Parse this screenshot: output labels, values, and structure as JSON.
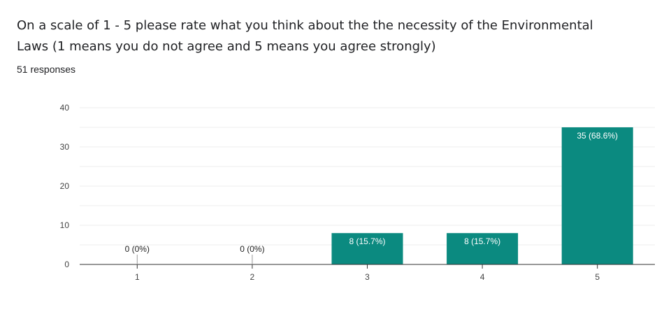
{
  "form": {
    "question": "On a scale of 1 - 5 please rate what you think about the the necessity of the Environmental Laws (1 means you do not agree and 5 means you agree strongly)",
    "responses": "51 responses"
  },
  "colors": {
    "bar": "#0b8a80",
    "grid": "#eeeeee",
    "axis": "#333333"
  },
  "chart_data": {
    "type": "bar",
    "categories": [
      "1",
      "2",
      "3",
      "4",
      "5"
    ],
    "values": [
      0,
      0,
      8,
      8,
      35
    ],
    "data_labels": [
      "0 (0%)",
      "0 (0%)",
      "8 (15.7%)",
      "8 (15.7%)",
      "35 (68.6%)"
    ],
    "ylim": [
      0,
      40
    ],
    "yticks": [
      0,
      10,
      20,
      30,
      40
    ],
    "title": "",
    "xlabel": "",
    "ylabel": "",
    "grid": true
  }
}
